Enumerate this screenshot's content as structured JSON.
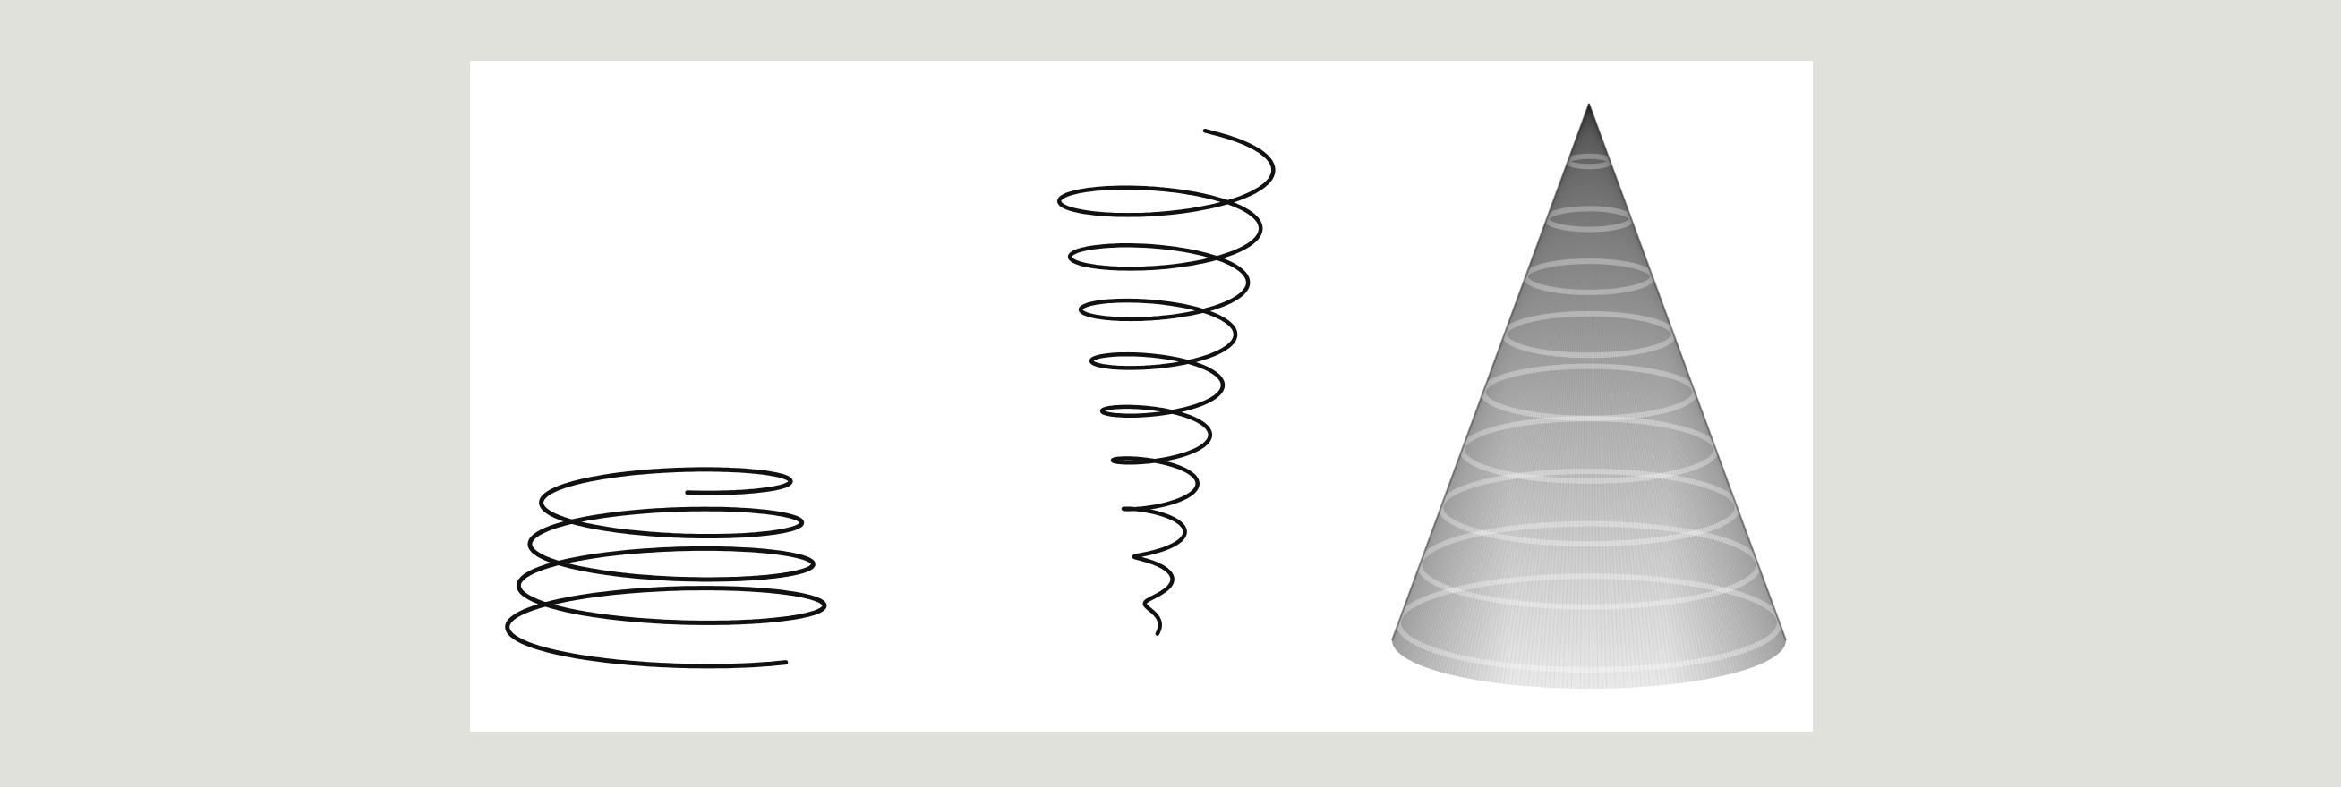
{
  "figure": {
    "panels": [
      {
        "name": "helix-conical-upward",
        "description_visible": false,
        "turns": 4.1,
        "radius_bottom_ratio": 1.0,
        "radius_top_ratio": 0.72,
        "stroke": "#111111"
      },
      {
        "name": "helix-conical-downward",
        "turns": 9.3,
        "radius_top_ratio": 1.0,
        "radius_bottom_ratio": 0.03,
        "stroke": "#111111"
      },
      {
        "name": "shaded-cone",
        "fill_top": "#4d4d4d",
        "fill_bottom": "#f4f4f4",
        "rings": 9
      }
    ],
    "colors": {
      "page_background": "#e1e1db",
      "panel_background": "#ffffff",
      "line": "#111111"
    }
  }
}
